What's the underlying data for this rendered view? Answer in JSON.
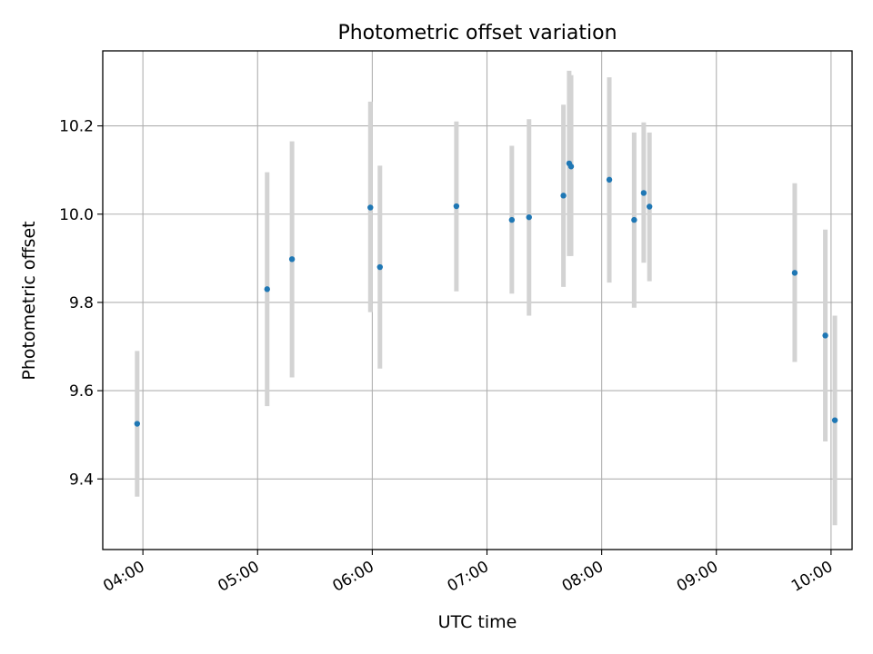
{
  "chart_data": {
    "type": "scatter",
    "title": "Photometric offset variation",
    "xlabel": "UTC time",
    "ylabel": "Photometric offset",
    "xlim": [
      "03:39",
      "10:11"
    ],
    "ylim": [
      9.24,
      10.37
    ],
    "grid": true,
    "x_ticks": [
      "04:00",
      "05:00",
      "06:00",
      "07:00",
      "08:00",
      "09:00",
      "10:00"
    ],
    "y_ticks": [
      "9.4",
      "9.6",
      "9.8",
      "10.0",
      "10.2"
    ],
    "series": [
      {
        "marker_color": "#1f77b4",
        "errorbar_color": "#d3d3d3",
        "points": [
          {
            "t": "03:57",
            "y": 9.525,
            "lo": 9.36,
            "hi": 9.69
          },
          {
            "t": "05:05",
            "y": 9.83,
            "lo": 9.565,
            "hi": 10.095
          },
          {
            "t": "05:18",
            "y": 9.898,
            "lo": 9.63,
            "hi": 10.165
          },
          {
            "t": "05:59",
            "y": 10.015,
            "lo": 9.778,
            "hi": 10.255
          },
          {
            "t": "06:04",
            "y": 9.88,
            "lo": 9.65,
            "hi": 10.11
          },
          {
            "t": "06:44",
            "y": 10.018,
            "lo": 9.825,
            "hi": 10.21
          },
          {
            "t": "07:13",
            "y": 9.987,
            "lo": 9.82,
            "hi": 10.155
          },
          {
            "t": "07:22",
            "y": 9.993,
            "lo": 9.77,
            "hi": 10.215
          },
          {
            "t": "07:40",
            "y": 10.042,
            "lo": 9.835,
            "hi": 10.248
          },
          {
            "t": "07:43",
            "y": 10.115,
            "lo": 9.905,
            "hi": 10.325
          },
          {
            "t": "07:44",
            "y": 10.108,
            "lo": 9.905,
            "hi": 10.315
          },
          {
            "t": "08:04",
            "y": 10.078,
            "lo": 9.845,
            "hi": 10.31
          },
          {
            "t": "08:17",
            "y": 9.987,
            "lo": 9.788,
            "hi": 10.185
          },
          {
            "t": "08:22",
            "y": 10.048,
            "lo": 9.89,
            "hi": 10.208
          },
          {
            "t": "08:25",
            "y": 10.017,
            "lo": 9.848,
            "hi": 10.185
          },
          {
            "t": "09:41",
            "y": 9.867,
            "lo": 9.665,
            "hi": 10.07
          },
          {
            "t": "09:57",
            "y": 9.725,
            "lo": 9.485,
            "hi": 9.965
          },
          {
            "t": "10:02",
            "y": 9.533,
            "lo": 9.295,
            "hi": 9.77
          }
        ]
      }
    ]
  }
}
